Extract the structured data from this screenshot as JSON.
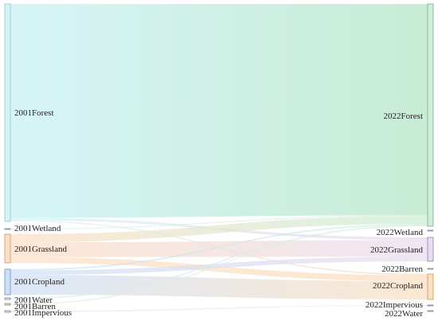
{
  "diagram": {
    "type": "sankey",
    "left_nodes": [
      {
        "id": "f01",
        "label": "2001Forest",
        "color": "#d7f3f6",
        "stroke": "#8fc9cc"
      },
      {
        "id": "w01",
        "label": "2001Wetland",
        "color": "#e4ebe7",
        "stroke": "#7c8a84"
      },
      {
        "id": "g01",
        "label": "2001Grassland",
        "color": "#fbe0c6",
        "stroke": "#c8966a"
      },
      {
        "id": "c01",
        "label": "2001Cropland",
        "color": "#cfe0f6",
        "stroke": "#6d8fc6"
      },
      {
        "id": "wa01",
        "label": "2001Water",
        "color": "#e8ecef",
        "stroke": "#7d858c"
      },
      {
        "id": "b01",
        "label": "2001Barren",
        "color": "#eef0ea",
        "stroke": "#7d846f"
      },
      {
        "id": "i01",
        "label": "2001Impervious",
        "color": "#eeeaf0",
        "stroke": "#857d8c"
      }
    ],
    "right_nodes": [
      {
        "id": "f22",
        "label": "2022Forest",
        "color": "#cdeed8",
        "stroke": "#7aa98a"
      },
      {
        "id": "w22",
        "label": "2022Wetland",
        "color": "#e8eef4",
        "stroke": "#7d8894"
      },
      {
        "id": "g22",
        "label": "2022Grassland",
        "color": "#eadcf0",
        "stroke": "#9a7aa8"
      },
      {
        "id": "b22",
        "label": "2022Barren",
        "color": "#eeeeee",
        "stroke": "#888888"
      },
      {
        "id": "c22",
        "label": "2022Cropland",
        "color": "#fbe0c2",
        "stroke": "#c8964e"
      },
      {
        "id": "i22",
        "label": "2022Impervious",
        "color": "#eeeaf0",
        "stroke": "#857d8c"
      },
      {
        "id": "wa22",
        "label": "2022Water",
        "color": "#e8ecef",
        "stroke": "#7d858c"
      }
    ],
    "flows": [
      {
        "source": "f01",
        "target": "f22",
        "value": 540,
        "gradient": [
          "#d6f4f7",
          "#c8ecd5"
        ]
      },
      {
        "source": "f01",
        "target": "g22",
        "value": 6,
        "gradient": [
          "#d6f4f7",
          "#ead8ef"
        ]
      },
      {
        "source": "f01",
        "target": "c22",
        "value": 3,
        "gradient": [
          "#d6f4f7",
          "#fbdcc0"
        ]
      },
      {
        "source": "w01",
        "target": "f22",
        "value": 2,
        "gradient": [
          "#e4ebe7",
          "#cdeed8"
        ]
      },
      {
        "source": "g01",
        "target": "f22",
        "value": 20,
        "gradient": [
          "#fbe0c6",
          "#cdeed8"
        ]
      },
      {
        "source": "g01",
        "target": "g22",
        "value": 36,
        "gradient": [
          "#fbe0c6",
          "#eadcf0"
        ]
      },
      {
        "source": "g01",
        "target": "c22",
        "value": 14,
        "gradient": [
          "#fbe0c6",
          "#fbe0c2"
        ]
      },
      {
        "source": "c01",
        "target": "f22",
        "value": 3,
        "gradient": [
          "#cfe0f6",
          "#cdeed8"
        ]
      },
      {
        "source": "c01",
        "target": "g22",
        "value": 10,
        "gradient": [
          "#cfe0f6",
          "#eadcf0"
        ]
      },
      {
        "source": "c01",
        "target": "c22",
        "value": 44,
        "gradient": [
          "#cfe0f6",
          "#fbe0c2"
        ]
      },
      {
        "source": "wa01",
        "target": "f22",
        "value": 2,
        "gradient": [
          "#e8ecef",
          "#cdeed8"
        ]
      },
      {
        "source": "b01",
        "target": "f22",
        "value": 1,
        "gradient": [
          "#eef0ea",
          "#cdeed8"
        ]
      },
      {
        "source": "i01",
        "target": "i22",
        "value": 1,
        "gradient": [
          "#eeeaf0",
          "#eeeaf0"
        ]
      }
    ]
  }
}
